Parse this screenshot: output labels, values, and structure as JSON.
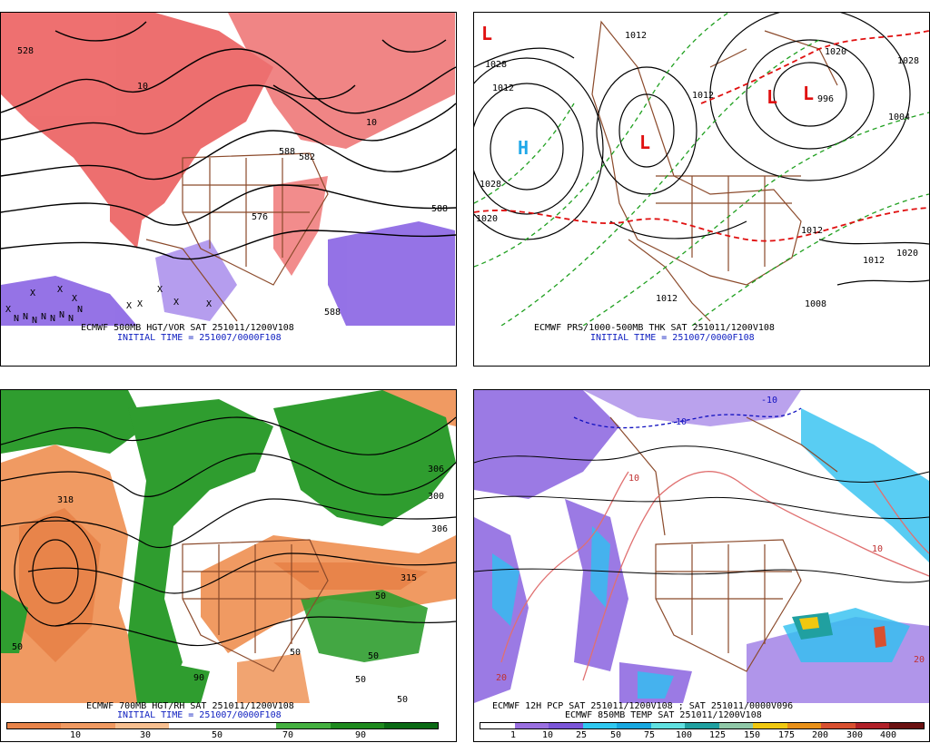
{
  "panels": {
    "p1": {
      "title": "ECMWF 500MB HGT/VOR SAT 251011/1200V108",
      "init": "INITIAL TIME = 251007/0000F108",
      "contour_labels": [
        "528",
        "588",
        "582",
        "588",
        "576",
        "588",
        "10",
        "10"
      ],
      "x_marks": [
        "X",
        "X",
        "X",
        "X",
        "X",
        "X",
        "X",
        "X",
        "X"
      ],
      "n_marks": [
        "N",
        "N",
        "N",
        "N",
        "N",
        "N",
        "N",
        "N"
      ]
    },
    "p2": {
      "title": "ECMWF PRS/1000-500MB THK SAT 251011/1200V108",
      "init": "INITIAL TIME = 251007/0000F108",
      "pressure_labels": [
        "1028",
        "1020",
        "1012",
        "1012",
        "1028",
        "1012",
        "1012",
        "1020",
        "1012",
        "1020",
        "1028",
        "1004",
        "996",
        "1012",
        "1008"
      ],
      "highs": [
        "H"
      ],
      "lows": [
        "L",
        "L",
        "L",
        "L"
      ]
    },
    "p3": {
      "title": "ECMWF 700MB HGT/RH SAT 251011/1200V108",
      "init": "INITIAL TIME = 251007/0000F108",
      "contour_labels": [
        "318",
        "306",
        "300",
        "306",
        "315",
        "50",
        "50",
        "90",
        "50",
        "50",
        "50",
        "50"
      ],
      "colorbar": {
        "colors": [
          "#e8844a",
          "#f09a62",
          "#f8bf90",
          "#ffffff",
          "#ffffff",
          "#44b040",
          "#1e8a1e",
          "#0a6a14"
        ],
        "ticks": [
          "10",
          "30",
          "50",
          "70",
          "90"
        ]
      }
    },
    "p4": {
      "title": "ECMWF 12H PCP SAT 251011/1200V108 ; SAT 251011/0000V096",
      "subtitle": "ECMWF 850MB TEMP SAT 251011/1200V108",
      "contour_labels": [
        "-10",
        "-10",
        "10",
        "10",
        "20",
        "20"
      ],
      "colorbar": {
        "colors": [
          "#ffffff",
          "#9a70e0",
          "#7b56d8",
          "#30c8f0",
          "#18a8e0",
          "#60e0e0",
          "#20a0a0",
          "#90c8a8",
          "#f0c810",
          "#e89018",
          "#d85030",
          "#b02028",
          "#6a1010"
        ],
        "ticks": [
          "1",
          "10",
          "25",
          "50",
          "75",
          "100",
          "125",
          "150",
          "175",
          "200",
          "300",
          "400"
        ]
      }
    }
  },
  "legend_colors": {
    "vorticity": "#e03030",
    "rh_green": "#2f9d2f",
    "rh_dry": "#f09a62",
    "precip_purple": "#8a62e0",
    "precip_cyan": "#30c0f0",
    "borders": "#8b4a2b",
    "thickness": "#20a020",
    "thickness_warm": "#e01010",
    "high": "#20a8e8",
    "low": "#e01010"
  }
}
